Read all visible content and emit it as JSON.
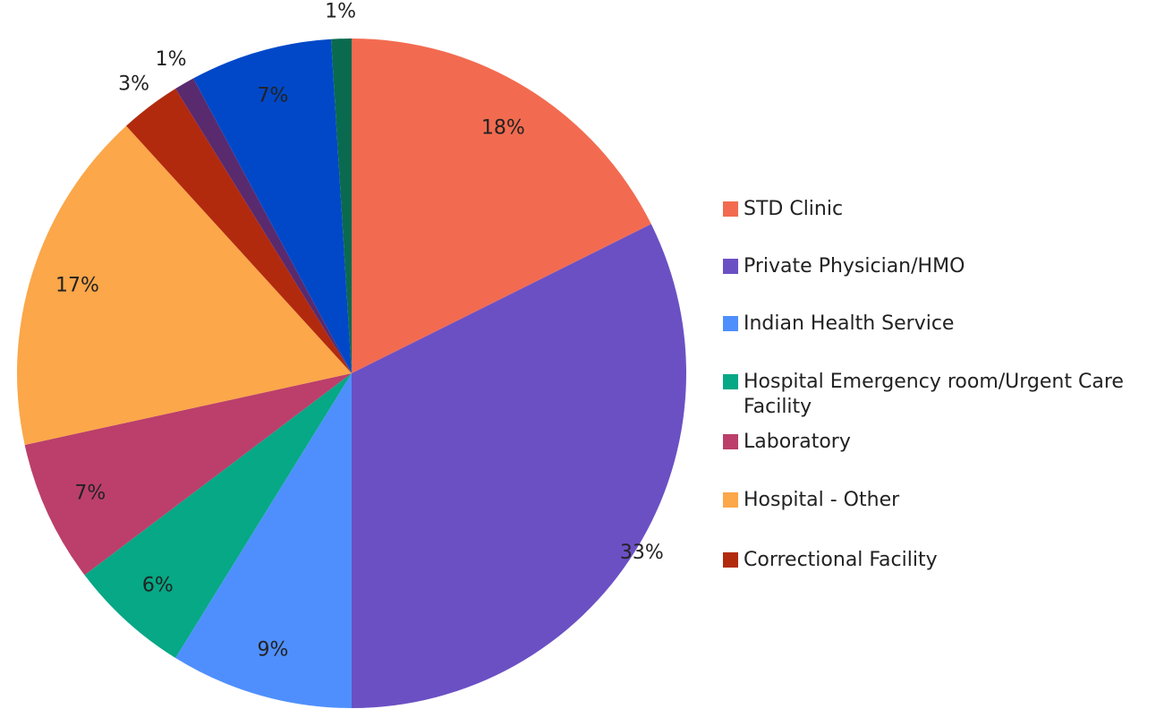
{
  "chart_data": {
    "type": "pie",
    "categories": [
      "STD Clinic",
      "Private Physician/HMO",
      "Indian Health Service",
      "Hospital Emergency room/Urgent Care Facility",
      "Laboratory",
      "Hospital - Other",
      "Correctional Facility",
      null,
      null,
      null
    ],
    "values": [
      18,
      33,
      9,
      6,
      7,
      17,
      3,
      1,
      7,
      1
    ],
    "value_labels": [
      "18%",
      "33%",
      "9%",
      "6%",
      "7%",
      "17%",
      "3%",
      "1%",
      "7%",
      "1%"
    ],
    "colors": [
      "#f26b50",
      "#6b50c4",
      "#4f8ffd",
      "#06a886",
      "#bb3f6a",
      "#fba74a",
      "#b22a0e",
      "#5a2a6e",
      "#0048c8",
      "#0a6a4f"
    ],
    "legend": "right"
  }
}
